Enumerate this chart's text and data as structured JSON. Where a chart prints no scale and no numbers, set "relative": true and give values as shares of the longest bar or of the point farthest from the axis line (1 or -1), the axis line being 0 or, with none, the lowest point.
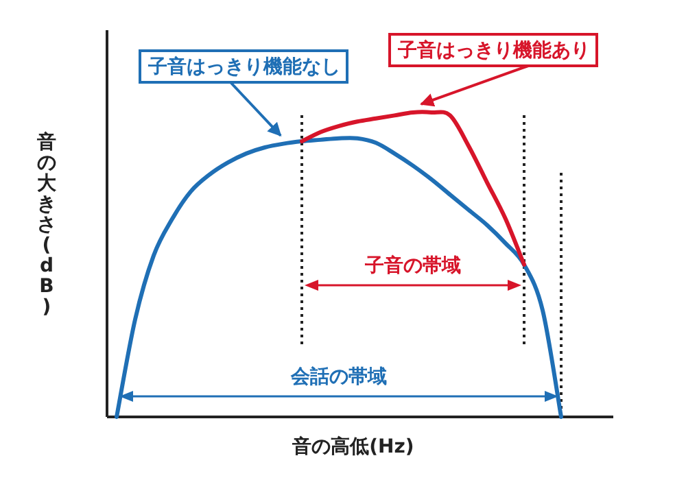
{
  "chart_data": {
    "type": "line",
    "relative": true,
    "xlabel": "音の高低(Hz)",
    "ylabel": "音の大きさ(dB)",
    "grid": false,
    "legend": false,
    "marker": "none",
    "line_style": "solid",
    "categories": [
      null,
      null,
      null,
      null,
      null,
      null,
      null,
      null,
      null,
      null,
      null,
      null,
      null,
      null,
      null,
      null,
      null,
      null,
      null,
      null,
      null,
      null,
      null,
      null,
      null,
      null,
      null
    ],
    "series": [
      {
        "name": "子音はっきり機能なし",
        "color": "#1f6fb5",
        "values": [
          0,
          0.32,
          0.53,
          0.65,
          0.74,
          0.795,
          0.835,
          0.865,
          0.885,
          0.897,
          0.905,
          0.91,
          0.915,
          0.915,
          0.9,
          0.865,
          0.825,
          0.78,
          0.73,
          0.68,
          0.63,
          0.57,
          0.5,
          0.35,
          0,
          null,
          null
        ]
      },
      {
        "name": "子音はっきり機能あり",
        "color": "#d7152a",
        "values": [
          null,
          null,
          null,
          null,
          null,
          null,
          null,
          null,
          null,
          null,
          0.905,
          0.935,
          0.955,
          0.97,
          0.98,
          0.99,
          1.0,
          1.0,
          0.99,
          0.89,
          0.77,
          0.65,
          0.5,
          null,
          null,
          null,
          null
        ]
      }
    ],
    "annotations": [
      "子音の帯域",
      "会話の帯域"
    ]
  }
}
